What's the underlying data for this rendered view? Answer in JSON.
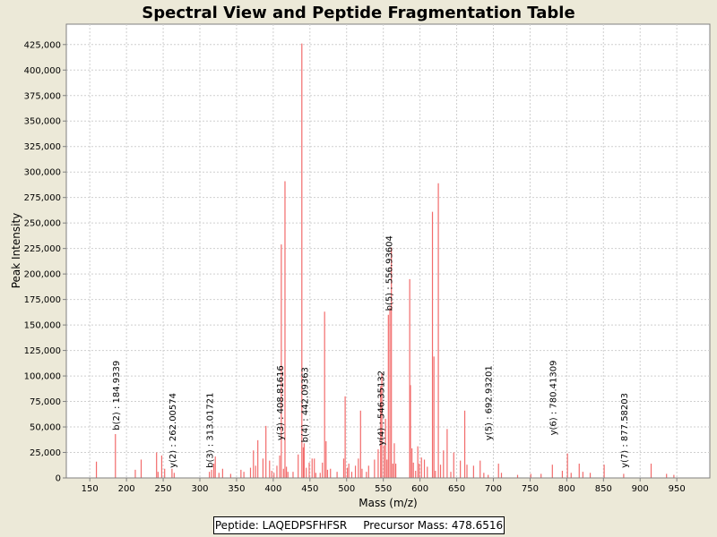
{
  "chart_data": {
    "type": "bar",
    "title": "Spectral View and Peptide Fragmentation Table",
    "xlabel": "Mass (m/z)",
    "ylabel": "Peak Intensity",
    "xlim": [
      118,
      995
    ],
    "ylim": [
      0,
      445000
    ],
    "grid": true,
    "peak_color": "#f26b6b",
    "x_ticks": [
      150,
      200,
      250,
      300,
      350,
      400,
      450,
      500,
      550,
      600,
      650,
      700,
      750,
      800,
      850,
      900,
      950
    ],
    "y_ticks": [
      0,
      25000,
      50000,
      75000,
      100000,
      125000,
      150000,
      175000,
      200000,
      225000,
      250000,
      275000,
      300000,
      325000,
      350000,
      375000,
      400000,
      425000
    ],
    "y_tick_labels": [
      "0",
      "25,000",
      "50,000",
      "75,000",
      "100,000",
      "125,000",
      "150,000",
      "175,000",
      "200,000",
      "225,000",
      "250,000",
      "275,000",
      "300,000",
      "325,000",
      "350,000",
      "375,000",
      "400,000",
      "425,000"
    ],
    "peaks": [
      {
        "mz": 159,
        "intensity": 16000
      },
      {
        "mz": 184.9,
        "intensity": 43000
      },
      {
        "mz": 212,
        "intensity": 8000
      },
      {
        "mz": 220,
        "intensity": 18000
      },
      {
        "mz": 241,
        "intensity": 25000
      },
      {
        "mz": 243,
        "intensity": 6000
      },
      {
        "mz": 248,
        "intensity": 22000
      },
      {
        "mz": 252,
        "intensity": 9000
      },
      {
        "mz": 262,
        "intensity": 9000
      },
      {
        "mz": 265,
        "intensity": 5000
      },
      {
        "mz": 313,
        "intensity": 6000
      },
      {
        "mz": 316,
        "intensity": 8000
      },
      {
        "mz": 319,
        "intensity": 14000
      },
      {
        "mz": 321,
        "intensity": 21000
      },
      {
        "mz": 326,
        "intensity": 5000
      },
      {
        "mz": 331,
        "intensity": 9000
      },
      {
        "mz": 342,
        "intensity": 4000
      },
      {
        "mz": 356,
        "intensity": 8000
      },
      {
        "mz": 360,
        "intensity": 6000
      },
      {
        "mz": 369,
        "intensity": 10000
      },
      {
        "mz": 373,
        "intensity": 27000
      },
      {
        "mz": 376,
        "intensity": 12000
      },
      {
        "mz": 379,
        "intensity": 37000
      },
      {
        "mz": 386,
        "intensity": 19000
      },
      {
        "mz": 390,
        "intensity": 51000
      },
      {
        "mz": 395,
        "intensity": 17000
      },
      {
        "mz": 398,
        "intensity": 7000
      },
      {
        "mz": 401,
        "intensity": 5000
      },
      {
        "mz": 405,
        "intensity": 12000
      },
      {
        "mz": 408.8,
        "intensity": 22000
      },
      {
        "mz": 411,
        "intensity": 229000
      },
      {
        "mz": 414,
        "intensity": 9000
      },
      {
        "mz": 416,
        "intensity": 291000
      },
      {
        "mz": 418,
        "intensity": 11000
      },
      {
        "mz": 420,
        "intensity": 6000
      },
      {
        "mz": 427,
        "intensity": 6000
      },
      {
        "mz": 434,
        "intensity": 23000
      },
      {
        "mz": 439,
        "intensity": 426000
      },
      {
        "mz": 441,
        "intensity": 30000
      },
      {
        "mz": 442.1,
        "intensity": 34000
      },
      {
        "mz": 445,
        "intensity": 10000
      },
      {
        "mz": 449,
        "intensity": 15000
      },
      {
        "mz": 453,
        "intensity": 19000
      },
      {
        "mz": 456,
        "intensity": 19000
      },
      {
        "mz": 458,
        "intensity": 5000
      },
      {
        "mz": 464,
        "intensity": 5000
      },
      {
        "mz": 467,
        "intensity": 15000
      },
      {
        "mz": 470,
        "intensity": 163000
      },
      {
        "mz": 472,
        "intensity": 36000
      },
      {
        "mz": 474,
        "intensity": 8000
      },
      {
        "mz": 478,
        "intensity": 9000
      },
      {
        "mz": 487,
        "intensity": 6000
      },
      {
        "mz": 496,
        "intensity": 19000
      },
      {
        "mz": 498,
        "intensity": 80000
      },
      {
        "mz": 501,
        "intensity": 10000
      },
      {
        "mz": 503,
        "intensity": 14000
      },
      {
        "mz": 507,
        "intensity": 6000
      },
      {
        "mz": 512,
        "intensity": 12000
      },
      {
        "mz": 516,
        "intensity": 19000
      },
      {
        "mz": 519,
        "intensity": 66000
      },
      {
        "mz": 521,
        "intensity": 9000
      },
      {
        "mz": 527,
        "intensity": 6000
      },
      {
        "mz": 530,
        "intensity": 12000
      },
      {
        "mz": 538,
        "intensity": 18000
      },
      {
        "mz": 543,
        "intensity": 28000
      },
      {
        "mz": 546.4,
        "intensity": 90000
      },
      {
        "mz": 548,
        "intensity": 103000
      },
      {
        "mz": 551,
        "intensity": 32000
      },
      {
        "mz": 553,
        "intensity": 58000
      },
      {
        "mz": 555,
        "intensity": 18000
      },
      {
        "mz": 556.9,
        "intensity": 160000
      },
      {
        "mz": 559,
        "intensity": 167000
      },
      {
        "mz": 561,
        "intensity": 226000
      },
      {
        "mz": 563,
        "intensity": 14000
      },
      {
        "mz": 565,
        "intensity": 34000
      },
      {
        "mz": 567,
        "intensity": 14000
      },
      {
        "mz": 586,
        "intensity": 195000
      },
      {
        "mz": 587,
        "intensity": 91000
      },
      {
        "mz": 589,
        "intensity": 29000
      },
      {
        "mz": 591,
        "intensity": 15000
      },
      {
        "mz": 594,
        "intensity": 7000
      },
      {
        "mz": 597,
        "intensity": 31000
      },
      {
        "mz": 599,
        "intensity": 14000
      },
      {
        "mz": 602,
        "intensity": 20000
      },
      {
        "mz": 606,
        "intensity": 18000
      },
      {
        "mz": 610,
        "intensity": 11000
      },
      {
        "mz": 617,
        "intensity": 261000
      },
      {
        "mz": 619,
        "intensity": 119000
      },
      {
        "mz": 621,
        "intensity": 7000
      },
      {
        "mz": 625,
        "intensity": 289000
      },
      {
        "mz": 628,
        "intensity": 13000
      },
      {
        "mz": 632,
        "intensity": 27000
      },
      {
        "mz": 637,
        "intensity": 48000
      },
      {
        "mz": 642,
        "intensity": 6000
      },
      {
        "mz": 646,
        "intensity": 25000
      },
      {
        "mz": 655,
        "intensity": 17000
      },
      {
        "mz": 661,
        "intensity": 66000
      },
      {
        "mz": 664,
        "intensity": 13000
      },
      {
        "mz": 673,
        "intensity": 12000
      },
      {
        "mz": 682,
        "intensity": 17000
      },
      {
        "mz": 687,
        "intensity": 5000
      },
      {
        "mz": 692.9,
        "intensity": 3000
      },
      {
        "mz": 707,
        "intensity": 14000
      },
      {
        "mz": 711,
        "intensity": 5000
      },
      {
        "mz": 733,
        "intensity": 3000
      },
      {
        "mz": 751,
        "intensity": 4000
      },
      {
        "mz": 765,
        "intensity": 4000
      },
      {
        "mz": 780.4,
        "intensity": 13000
      },
      {
        "mz": 794,
        "intensity": 7000
      },
      {
        "mz": 801,
        "intensity": 24000
      },
      {
        "mz": 806,
        "intensity": 5000
      },
      {
        "mz": 817,
        "intensity": 14000
      },
      {
        "mz": 822,
        "intensity": 6000
      },
      {
        "mz": 832,
        "intensity": 5000
      },
      {
        "mz": 851,
        "intensity": 13000
      },
      {
        "mz": 877.6,
        "intensity": 4000
      },
      {
        "mz": 915,
        "intensity": 14000
      },
      {
        "mz": 936,
        "intensity": 4000
      },
      {
        "mz": 946,
        "intensity": 3000
      }
    ],
    "annotations": [
      {
        "mz": 184.9339,
        "label": "b(2) : 184.9339",
        "label_base": 45000
      },
      {
        "mz": 262.00574,
        "label": "y(2) : 262.00574",
        "label_base": 8000
      },
      {
        "mz": 313.01721,
        "label": "b(3) : 313.01721",
        "label_base": 8000
      },
      {
        "mz": 408.81616,
        "label": "y(3) : 408.81616",
        "label_base": 35000
      },
      {
        "mz": 442.09363,
        "label": "b(4) : 442.09363",
        "label_base": 33000
      },
      {
        "mz": 546.35132,
        "label": "y(4) : 546.35132",
        "label_base": 30000
      },
      {
        "mz": 556.93604,
        "label": "b(5) : 556.93604",
        "label_base": 162000
      },
      {
        "mz": 692.93201,
        "label": "y(5) : 692.93201",
        "label_base": 35000
      },
      {
        "mz": 780.41309,
        "label": "y(6) : 780.41309",
        "label_base": 40000
      },
      {
        "mz": 877.58203,
        "label": "y(7) : 877.58203",
        "label_base": 8000
      }
    ]
  },
  "footer": {
    "peptide_text": "Peptide: LAQEDPSFHFSR",
    "precursor_text": "Precursor Mass: 478.6516"
  }
}
